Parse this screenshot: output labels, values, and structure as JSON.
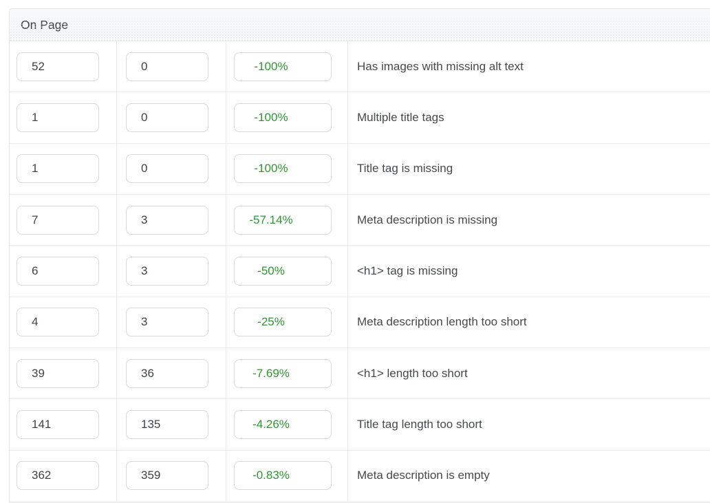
{
  "section": {
    "title": "On Page"
  },
  "colors": {
    "change_green": "#2e962e"
  },
  "rows": [
    {
      "previous": "52",
      "current": "0",
      "change": "-100%",
      "description": "Has images with missing alt text"
    },
    {
      "previous": "1",
      "current": "0",
      "change": "-100%",
      "description": "Multiple title tags"
    },
    {
      "previous": "1",
      "current": "0",
      "change": "-100%",
      "description": "Title tag is missing"
    },
    {
      "previous": "7",
      "current": "3",
      "change": "-57.14%",
      "description": "Meta description is missing"
    },
    {
      "previous": "6",
      "current": "3",
      "change": "-50%",
      "description": "<h1> tag is missing"
    },
    {
      "previous": "4",
      "current": "3",
      "change": "-25%",
      "description": "Meta description length too short"
    },
    {
      "previous": "39",
      "current": "36",
      "change": "-7.69%",
      "description": "<h1> length too short"
    },
    {
      "previous": "141",
      "current": "135",
      "change": "-4.26%",
      "description": "Title tag length too short"
    },
    {
      "previous": "362",
      "current": "359",
      "change": "-0.83%",
      "description": "Meta description is empty"
    }
  ]
}
